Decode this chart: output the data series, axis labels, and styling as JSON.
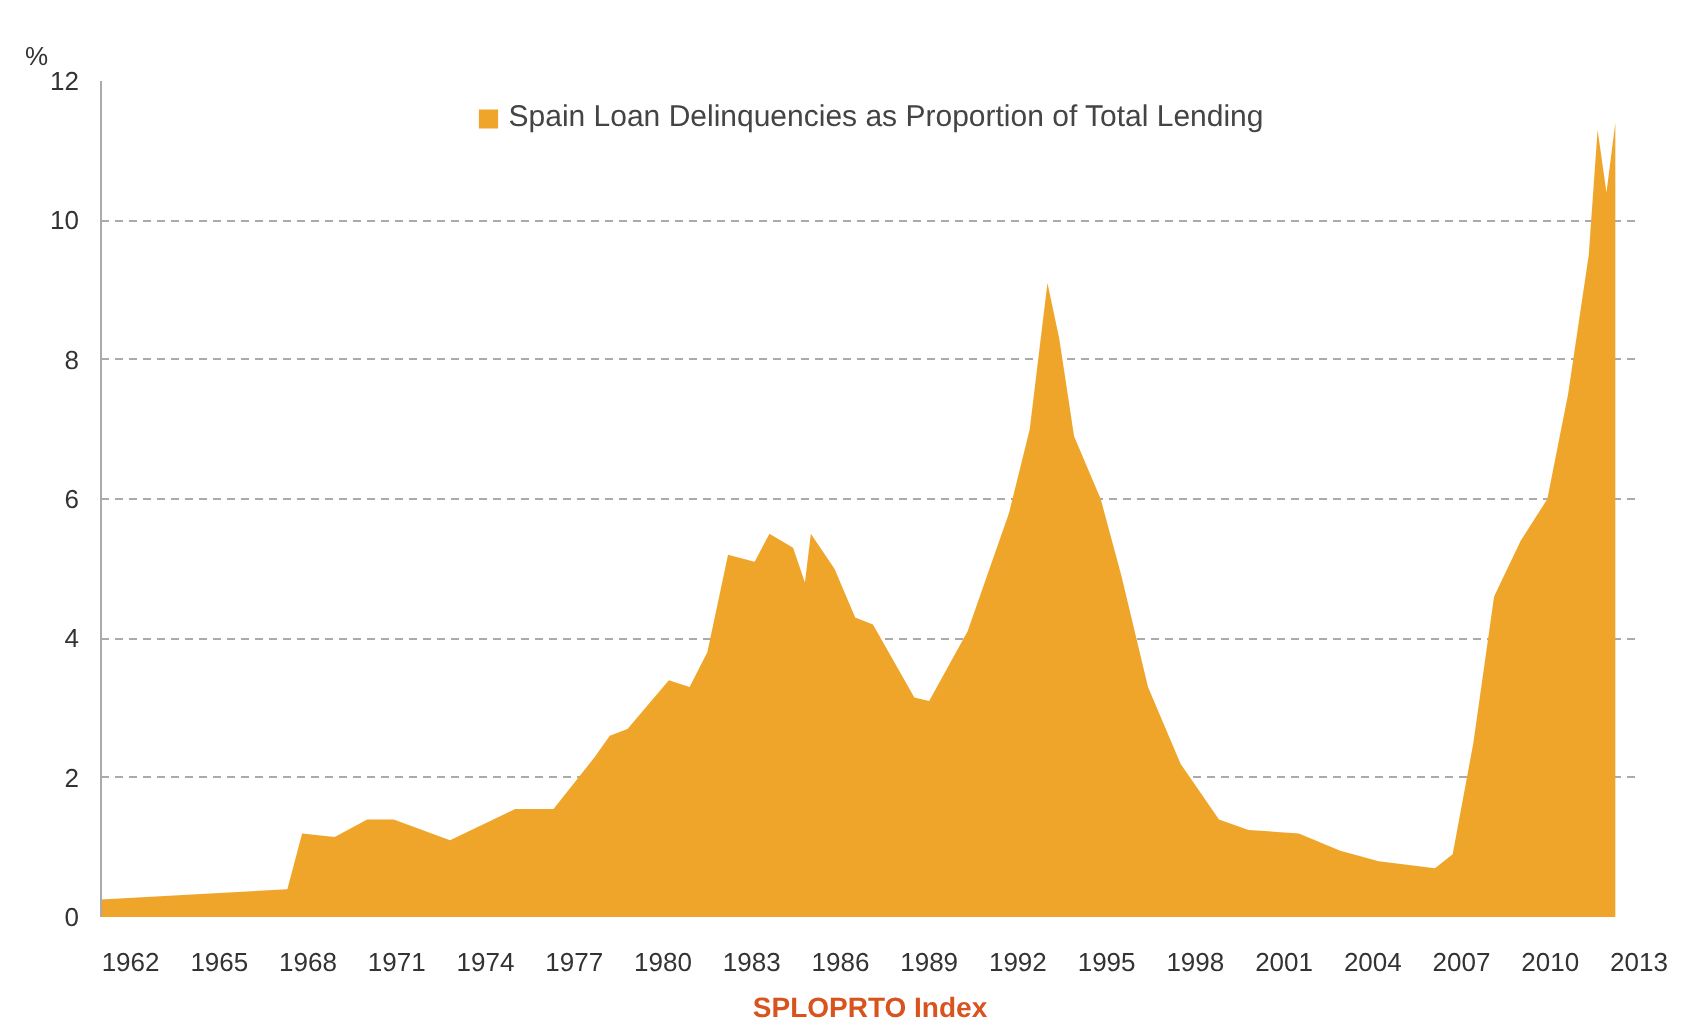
{
  "chart_data": {
    "type": "area",
    "ylabel": "%",
    "annotations": [
      "SPLOPRTO Index"
    ],
    "xlim": [
      1961,
      2013
    ],
    "xticks": [
      1962,
      1965,
      1968,
      1971,
      1974,
      1977,
      1980,
      1983,
      1986,
      1989,
      1992,
      1995,
      1998,
      2001,
      2004,
      2007,
      2010,
      2013
    ],
    "ylim": [
      0,
      12
    ],
    "yticks": [
      0,
      2,
      4,
      6,
      8,
      10,
      12
    ],
    "grid": "y",
    "legend": "top",
    "series": [
      {
        "name": "Spain Loan Delinquencies as Proportion of Total Lending",
        "color": "#efa52a",
        "x": [
          1961,
          1967.3,
          1967.8,
          1968.9,
          1970.0,
          1970.9,
          1972.8,
          1975.0,
          1976.3,
          1977.7,
          1978.2,
          1978.8,
          1980.2,
          1980.9,
          1981.5,
          1982.2,
          1983.1,
          1983.6,
          1984.4,
          1984.8,
          1985.0,
          1985.8,
          1986.5,
          1987.1,
          1988.5,
          1989.0,
          1990.3,
          1991.7,
          1992.4,
          1993.0,
          1993.4,
          1993.9,
          1994.8,
          1995.5,
          1996.4,
          1997.5,
          1998.8,
          1999.8,
          2001.5,
          2002.9,
          2004.2,
          2006.1,
          2006.7,
          2007.4,
          2008.1,
          2009.0,
          2009.9,
          2010.6,
          2011.3,
          2011.6,
          2011.9,
          2012.2
        ],
        "values": [
          0.25,
          0.4,
          1.2,
          1.15,
          1.4,
          1.4,
          1.1,
          1.55,
          1.55,
          2.3,
          2.6,
          2.7,
          3.4,
          3.3,
          3.8,
          5.2,
          5.1,
          5.5,
          5.3,
          4.8,
          5.5,
          5.0,
          4.3,
          4.2,
          3.15,
          3.1,
          4.1,
          5.8,
          7.0,
          9.1,
          8.3,
          6.9,
          6.0,
          4.9,
          3.3,
          2.2,
          1.4,
          1.25,
          1.2,
          0.95,
          0.8,
          0.7,
          0.9,
          2.5,
          4.6,
          5.4,
          6.0,
          7.5,
          9.5,
          11.3,
          10.4,
          11.4
        ]
      }
    ]
  }
}
